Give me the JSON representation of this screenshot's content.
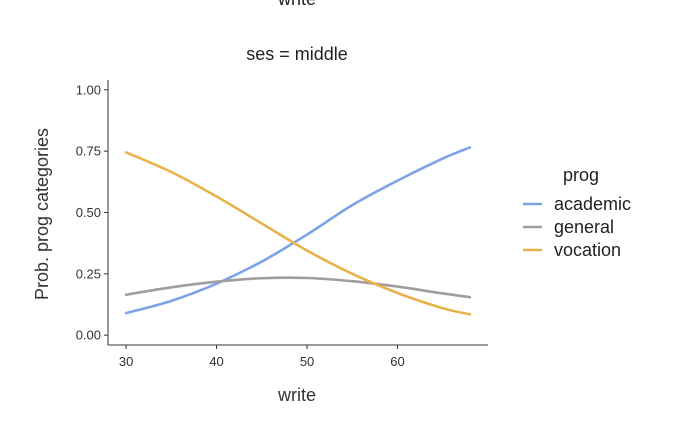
{
  "chart_data": {
    "type": "line",
    "top_title_partial": "write",
    "facet_title": "ses = middle",
    "xlabel": "write",
    "ylabel": "Prob. prog categories",
    "xlim": [
      28,
      70
    ],
    "ylim": [
      -0.04,
      1.04
    ],
    "x_ticks": [
      30,
      40,
      50,
      60
    ],
    "y_ticks": [
      0.0,
      0.25,
      0.5,
      0.75,
      1.0
    ],
    "y_tick_labels": [
      "0.00",
      "0.25",
      "0.50",
      "0.75",
      "1.00"
    ],
    "x": [
      30,
      35,
      40,
      45,
      50,
      55,
      60,
      65,
      68
    ],
    "legend": {
      "title": "prog",
      "placement": "right"
    },
    "series": [
      {
        "name": "academic",
        "color": "#7ba3e6",
        "values": [
          0.09,
          0.14,
          0.21,
          0.3,
          0.41,
          0.53,
          0.63,
          0.72,
          0.765
        ]
      },
      {
        "name": "general",
        "color": "#9e9e9e",
        "values": [
          0.165,
          0.195,
          0.218,
          0.232,
          0.233,
          0.22,
          0.198,
          0.17,
          0.155
        ]
      },
      {
        "name": "vocation",
        "color": "#e8b24a",
        "values": [
          0.745,
          0.665,
          0.565,
          0.455,
          0.345,
          0.25,
          0.172,
          0.11,
          0.085
        ]
      }
    ]
  }
}
